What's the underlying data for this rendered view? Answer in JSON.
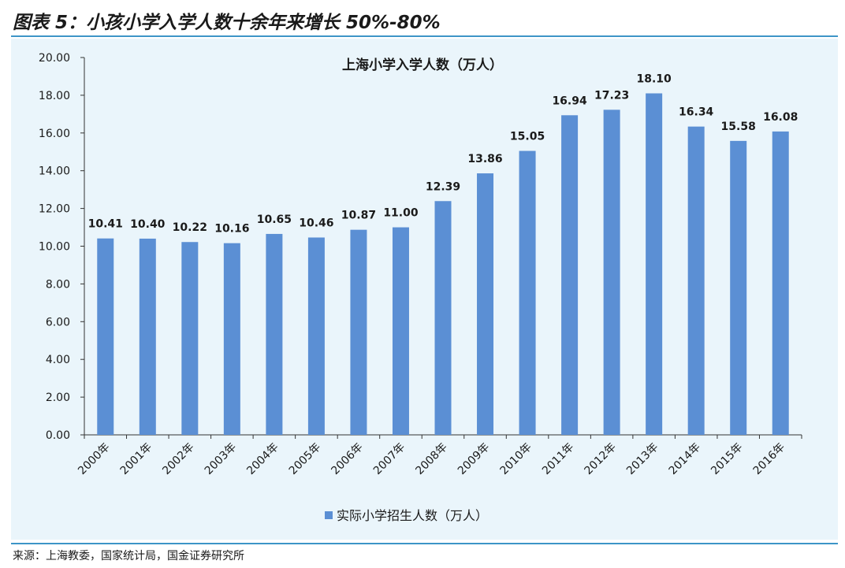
{
  "figure_title": "图表 5：小孩小学入学人数十余年来增长 50%-80%",
  "source": "来源：上海教委，国家统计局，国金证券研究所",
  "colors": {
    "bar": "#5b8fd4",
    "rule": "#3d95c7",
    "panel": "#eaf5fb"
  },
  "chart_data": {
    "type": "bar",
    "title": "上海小学入学人数（万人）",
    "categories": [
      "2000年",
      "2001年",
      "2002年",
      "2003年",
      "2004年",
      "2005年",
      "2006年",
      "2007年",
      "2008年",
      "2009年",
      "2010年",
      "2011年",
      "2012年",
      "2013年",
      "2014年",
      "2015年",
      "2016年"
    ],
    "series": [
      {
        "name": "实际小学招生人数（万人）",
        "values": [
          10.41,
          10.4,
          10.22,
          10.16,
          10.65,
          10.46,
          10.87,
          11.0,
          12.39,
          13.86,
          15.05,
          16.94,
          17.23,
          18.1,
          16.34,
          15.58,
          16.08
        ]
      }
    ],
    "value_labels": [
      "10.41",
      "10.40",
      "10.22",
      "10.16",
      "10.65",
      "10.46",
      "10.87",
      "11.00",
      "12.39",
      "13.86",
      "15.05",
      "16.94",
      "17.23",
      "18.10",
      "16.34",
      "15.58",
      "16.08"
    ],
    "y_ticks": [
      "0.00",
      "2.00",
      "4.00",
      "6.00",
      "8.00",
      "10.00",
      "12.00",
      "14.00",
      "16.00",
      "18.00",
      "20.00"
    ],
    "ylim": [
      0,
      20
    ],
    "xlabel": "",
    "ylabel": "",
    "grid": false,
    "legend_position": "bottom"
  }
}
